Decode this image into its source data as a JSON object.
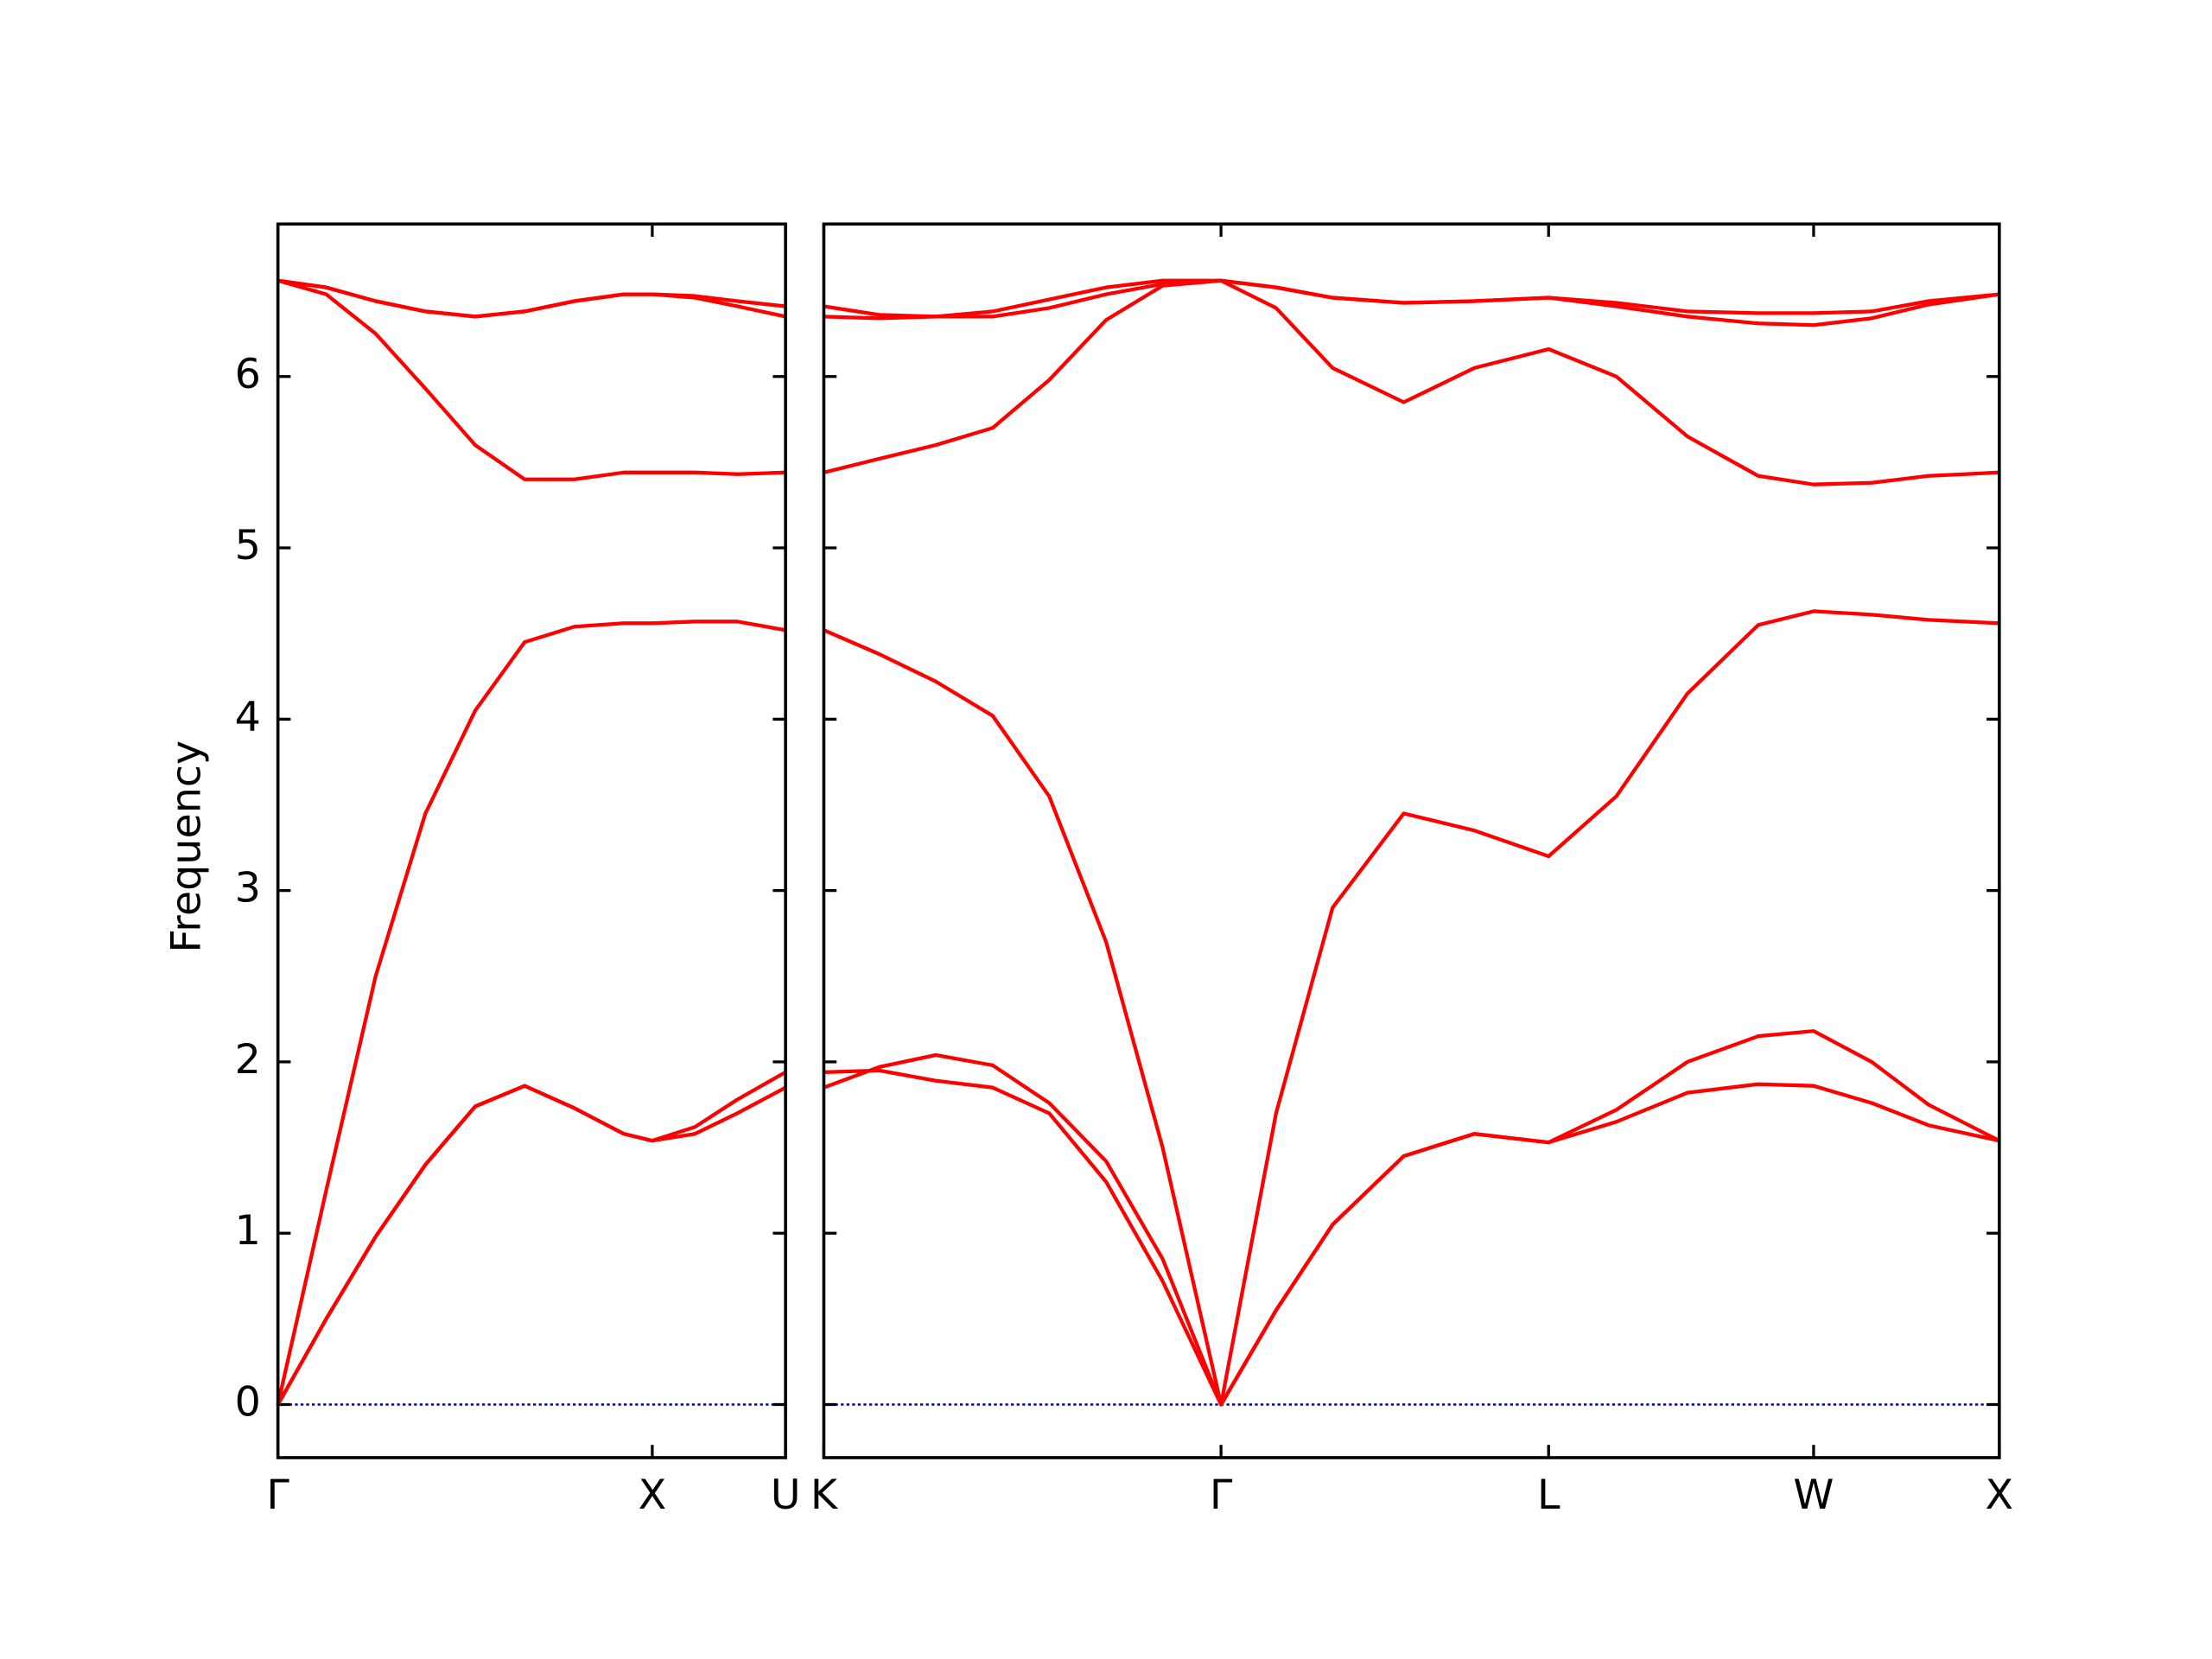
{
  "chart_data": [
    {
      "type": "line",
      "ylabel": "Frequency",
      "color": "#ff0000",
      "zero_line": true,
      "zero_line_color": "#0000aa",
      "xlim": [
        0,
        1.356
      ],
      "ylim": [
        -0.31,
        6.89
      ],
      "xticks": [
        {
          "value": 0,
          "label": "Γ"
        },
        {
          "value": 1,
          "label": "X"
        },
        {
          "value": 1.356,
          "label": "U"
        }
      ],
      "yticks": [
        0,
        1,
        2,
        3,
        4,
        5,
        6
      ],
      "ytick_labels": true,
      "x": [
        0,
        0.129,
        0.261,
        0.394,
        0.527,
        0.659,
        0.792,
        0.924,
        1.0,
        1.114,
        1.227,
        1.356
      ],
      "series": [
        {
          "values": [
            0,
            0.5,
            0.98,
            1.4,
            1.74,
            1.86,
            1.73,
            1.58,
            1.54,
            1.62,
            1.78,
            1.94
          ]
        },
        {
          "values": [
            0,
            0.5,
            0.98,
            1.4,
            1.74,
            1.86,
            1.73,
            1.58,
            1.54,
            1.58,
            1.7,
            1.85
          ]
        },
        {
          "values": [
            0,
            1.25,
            2.5,
            3.45,
            4.05,
            4.45,
            4.54,
            4.56,
            4.56,
            4.57,
            4.57,
            4.52
          ]
        },
        {
          "values": [
            6.56,
            6.48,
            6.25,
            5.93,
            5.6,
            5.4,
            5.4,
            5.44,
            5.44,
            5.44,
            5.43,
            5.44
          ]
        },
        {
          "values": [
            6.56,
            6.52,
            6.44,
            6.38,
            6.35,
            6.38,
            6.44,
            6.48,
            6.48,
            6.47,
            6.44,
            6.41
          ]
        },
        {
          "values": [
            6.56,
            6.52,
            6.44,
            6.38,
            6.35,
            6.38,
            6.44,
            6.48,
            6.48,
            6.46,
            6.41,
            6.35
          ]
        }
      ]
    },
    {
      "type": "line",
      "color": "#ff0000",
      "zero_line": true,
      "zero_line_color": "#0000aa",
      "xlim": [
        1.356,
        4.496
      ],
      "ylim": [
        -0.31,
        6.89
      ],
      "xticks": [
        {
          "value": 1.356,
          "label": "K"
        },
        {
          "value": 2.417,
          "label": "Γ"
        },
        {
          "value": 3.292,
          "label": "L"
        },
        {
          "value": 4.0,
          "label": "W"
        },
        {
          "value": 4.496,
          "label": "X"
        }
      ],
      "yticks": [
        0,
        1,
        2,
        3,
        4,
        5,
        6
      ],
      "ytick_labels": false,
      "x": [
        1.356,
        1.504,
        1.655,
        1.807,
        1.958,
        2.11,
        2.261,
        2.417,
        2.564,
        2.715,
        2.905,
        3.094,
        3.292,
        3.473,
        3.663,
        3.852,
        4.0,
        4.155,
        4.307,
        4.496
      ],
      "series": [
        {
          "values": [
            1.85,
            1.97,
            2.04,
            1.98,
            1.76,
            1.42,
            0.85,
            0,
            0.55,
            1.05,
            1.45,
            1.58,
            1.53,
            1.65,
            1.82,
            1.87,
            1.86,
            1.76,
            1.63,
            1.54
          ]
        },
        {
          "values": [
            1.94,
            1.95,
            1.89,
            1.85,
            1.7,
            1.3,
            0.72,
            0,
            0.55,
            1.05,
            1.45,
            1.58,
            1.53,
            1.72,
            2.0,
            2.15,
            2.18,
            2.0,
            1.75,
            1.54
          ]
        },
        {
          "values": [
            4.52,
            4.38,
            4.22,
            4.02,
            3.55,
            2.7,
            1.5,
            0,
            1.7,
            2.9,
            3.45,
            3.35,
            3.2,
            3.55,
            4.15,
            4.55,
            4.63,
            4.61,
            4.58,
            4.56
          ]
        },
        {
          "values": [
            5.44,
            5.52,
            5.6,
            5.7,
            5.98,
            6.33,
            6.53,
            6.56,
            6.4,
            6.05,
            5.85,
            6.05,
            6.16,
            6.0,
            5.65,
            5.42,
            5.37,
            5.38,
            5.42,
            5.44
          ]
        },
        {
          "values": [
            6.41,
            6.36,
            6.35,
            6.38,
            6.45,
            6.52,
            6.56,
            6.56,
            6.52,
            6.46,
            6.43,
            6.44,
            6.46,
            6.43,
            6.38,
            6.37,
            6.37,
            6.38,
            6.44,
            6.48
          ]
        },
        {
          "values": [
            6.35,
            6.34,
            6.35,
            6.35,
            6.4,
            6.48,
            6.54,
            6.56,
            6.52,
            6.46,
            6.43,
            6.44,
            6.46,
            6.41,
            6.35,
            6.31,
            6.3,
            6.34,
            6.42,
            6.48
          ]
        }
      ]
    }
  ]
}
